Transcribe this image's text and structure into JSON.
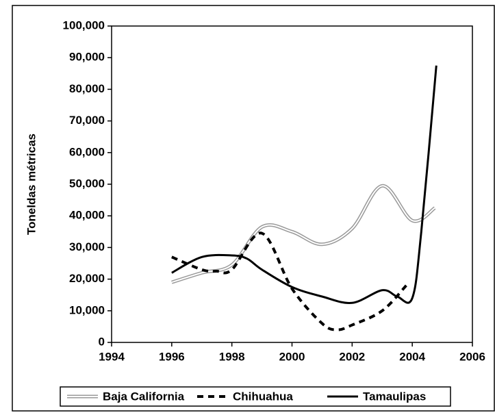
{
  "chart_data": {
    "type": "line",
    "ylabel": "Toneldas métricas",
    "xlim": [
      1994,
      2006
    ],
    "xticks": [
      1994,
      1996,
      1998,
      2000,
      2002,
      2004,
      2006
    ],
    "ylim": [
      0,
      100000
    ],
    "yticks": [
      0,
      {
        "value": 10000,
        "label": "10,000"
      },
      {
        "value": 20000,
        "label": "20,000"
      },
      {
        "value": 30000,
        "label": "30,000"
      },
      {
        "value": 40000,
        "label": "40,000"
      },
      {
        "value": 50000,
        "label": "50,000"
      },
      {
        "value": 60000,
        "label": "60,000"
      },
      {
        "value": 70000,
        "label": "70,000"
      },
      {
        "value": 80000,
        "label": "80,000"
      },
      {
        "value": 90000,
        "label": "90,000"
      },
      {
        "value": 100000,
        "label": "100,000"
      }
    ],
    "legend": "bottom",
    "series": [
      {
        "name": "Baja California",
        "color": "#999999",
        "line_style": "double",
        "x": [
          1996,
          1997,
          1998,
          1999,
          2000,
          2001,
          2002,
          2003,
          2004,
          2004.75
        ],
        "values": [
          19000,
          22000,
          24500,
          36500,
          35000,
          31000,
          36000,
          49500,
          38500,
          42500
        ]
      },
      {
        "name": "Chihuahua",
        "color": "#000000",
        "line_style": "dashed",
        "x": [
          1996,
          1997,
          1997.5,
          1998,
          1999,
          2000,
          2001,
          2001.5,
          2002,
          2003,
          2003.8
        ],
        "values": [
          27000,
          23000,
          22500,
          23000,
          34500,
          17000,
          6000,
          4000,
          5500,
          10000,
          18000
        ]
      },
      {
        "name": "Tamaulipas",
        "color": "#000000",
        "line_style": "solid",
        "x": [
          1996,
          1997,
          1998,
          1998.5,
          1999,
          2000,
          2001,
          2002,
          2003,
          2003.5,
          2004,
          2004.3,
          2004.8
        ],
        "values": [
          22000,
          27000,
          27500,
          26500,
          23000,
          17500,
          14500,
          12500,
          16500,
          14500,
          14000,
          35000,
          87500
        ]
      }
    ]
  }
}
